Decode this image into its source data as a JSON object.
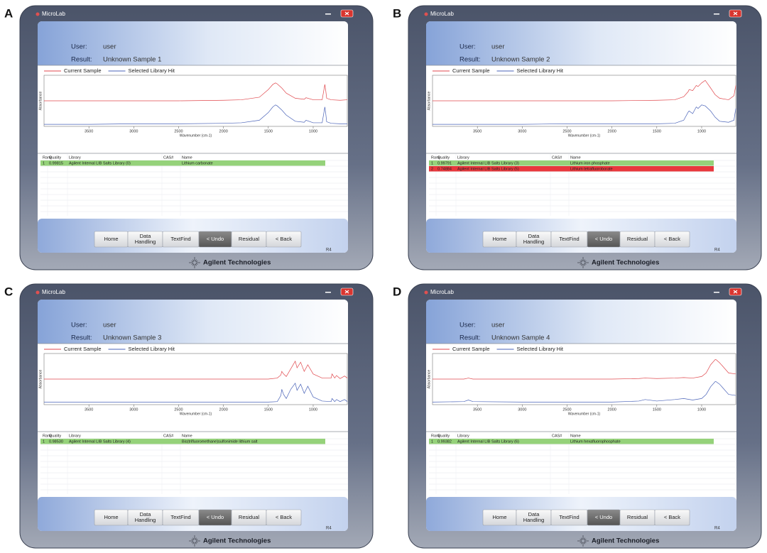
{
  "panels": [
    {
      "label": "A",
      "title": "MicroLab",
      "user_label": "User:",
      "user": "user",
      "result_label": "Result:",
      "result": "Unknown Sample 1",
      "chart_data": {
        "type": "line",
        "y_label": "Absorbance",
        "x_label": "Wavenumber (cm-1)",
        "xlim": [
          4000,
          620
        ],
        "xticks": [
          3500,
          3000,
          2500,
          2000,
          1500,
          1000
        ],
        "ylim": [
          0,
          1
        ],
        "x": [
          4000,
          3500,
          3000,
          2500,
          2000,
          1800,
          1600,
          1500,
          1450,
          1420,
          1400,
          1350,
          1300,
          1200,
          1100,
          1080,
          1000,
          900,
          870,
          860,
          850,
          800,
          700,
          620
        ],
        "series": [
          {
            "name": "Current Sample",
            "color": "#e0474c",
            "values": [
              0.5,
              0.5,
              0.5,
              0.5,
              0.51,
              0.52,
              0.57,
              0.72,
              0.82,
              0.85,
              0.83,
              0.75,
              0.65,
              0.55,
              0.53,
              0.56,
              0.52,
              0.52,
              0.82,
              0.7,
              0.55,
              0.52,
              0.51,
              0.52
            ]
          },
          {
            "name": "Selected Library Hit",
            "color": "#4a63b8",
            "values": [
              0.04,
              0.04,
              0.05,
              0.05,
              0.06,
              0.07,
              0.12,
              0.27,
              0.38,
              0.42,
              0.4,
              0.32,
              0.22,
              0.1,
              0.08,
              0.12,
              0.07,
              0.07,
              0.38,
              0.25,
              0.09,
              0.06,
              0.05,
              0.05
            ]
          }
        ]
      },
      "table": {
        "columns": [
          "Rank",
          "Quality",
          "Library",
          "CAS#",
          "Name"
        ],
        "rows": [
          {
            "rank": 1,
            "quality": "0.99815",
            "library": "Agilent Internal LIB Salts Library (0)",
            "name": "Lithium carbonate",
            "color": "#95d27a"
          }
        ]
      },
      "buttons": [
        "Home",
        [
          "Data",
          "Handling"
        ],
        "TextFind",
        "< Undo",
        "Residual",
        "< Back"
      ],
      "active_button": 3,
      "version": "R4",
      "brand": "Agilent Technologies"
    },
    {
      "label": "B",
      "title": "MicroLab",
      "user_label": "User:",
      "user": "user",
      "result_label": "Result:",
      "result": "Unknown Sample 2",
      "chart_data": {
        "type": "line",
        "y_label": "Absorbance",
        "x_label": "Wavenumber (cm-1)",
        "xlim": [
          4000,
          620
        ],
        "xticks": [
          3500,
          3000,
          2500,
          2000,
          1500,
          1000
        ],
        "ylim": [
          0,
          1
        ],
        "x": [
          4000,
          3500,
          3000,
          2500,
          2000,
          1500,
          1300,
          1200,
          1150,
          1140,
          1100,
          1060,
          1040,
          1000,
          960,
          900,
          850,
          800,
          700,
          640,
          620
        ],
        "series": [
          {
            "name": "Current Sample",
            "color": "#e0474c",
            "values": [
              0.5,
              0.5,
              0.5,
              0.5,
              0.5,
              0.51,
              0.52,
              0.58,
              0.68,
              0.72,
              0.7,
              0.8,
              0.78,
              0.85,
              0.9,
              0.75,
              0.62,
              0.55,
              0.52,
              0.6,
              0.8
            ]
          },
          {
            "name": "Selected Library Hit",
            "color": "#4a63b8",
            "values": [
              0.04,
              0.04,
              0.04,
              0.05,
              0.05,
              0.05,
              0.06,
              0.12,
              0.28,
              0.3,
              0.25,
              0.38,
              0.35,
              0.42,
              0.4,
              0.3,
              0.18,
              0.1,
              0.08,
              0.12,
              0.35
            ]
          }
        ]
      },
      "table": {
        "columns": [
          "Rank",
          "Quality",
          "Library",
          "CAS#",
          "Name"
        ],
        "rows": [
          {
            "rank": 1,
            "quality": "0.99791",
            "library": "Agilent Internal LIB Salts Library (3)",
            "name": "Lithium iron phosphate",
            "color": "#95d27a"
          },
          {
            "rank": 2,
            "quality": "0.74884",
            "library": "Agilent Internal LIB Salts Library (5)",
            "name": "Lithium tetrafluoroborate",
            "color": "#e8383d"
          }
        ]
      },
      "buttons": [
        "Home",
        [
          "Data",
          "Handling"
        ],
        "TextFind",
        "< Undo",
        "Residual",
        "< Back"
      ],
      "active_button": 3,
      "version": "R4",
      "brand": "Agilent Technologies"
    },
    {
      "label": "C",
      "title": "MicroLab",
      "user_label": "User:",
      "user": "user",
      "result_label": "Result:",
      "result": "Unknown Sample 3",
      "chart_data": {
        "type": "line",
        "y_label": "Absorbance",
        "x_label": "Wavenumber (cm-1)",
        "xlim": [
          4000,
          620
        ],
        "xticks": [
          3500,
          3000,
          2500,
          2000,
          1500,
          1000
        ],
        "ylim": [
          0,
          1
        ],
        "x": [
          4000,
          3500,
          3000,
          2500,
          2000,
          1500,
          1400,
          1360,
          1350,
          1330,
          1300,
          1250,
          1200,
          1180,
          1140,
          1100,
          1060,
          1000,
          900,
          800,
          790,
          760,
          740,
          700,
          650,
          620
        ],
        "series": [
          {
            "name": "Current Sample",
            "color": "#e0474c",
            "values": [
              0.5,
              0.5,
              0.5,
              0.5,
              0.5,
              0.5,
              0.52,
              0.58,
              0.65,
              0.6,
              0.55,
              0.7,
              0.85,
              0.72,
              0.83,
              0.65,
              0.78,
              0.6,
              0.52,
              0.52,
              0.6,
              0.52,
              0.57,
              0.51,
              0.56,
              0.52
            ]
          },
          {
            "name": "Selected Library Hit",
            "color": "#4a63b8",
            "values": [
              0.05,
              0.05,
              0.05,
              0.05,
              0.05,
              0.05,
              0.06,
              0.18,
              0.3,
              0.2,
              0.12,
              0.3,
              0.42,
              0.28,
              0.4,
              0.22,
              0.36,
              0.15,
              0.07,
              0.06,
              0.12,
              0.06,
              0.1,
              0.06,
              0.1,
              0.06
            ]
          }
        ]
      },
      "table": {
        "columns": [
          "Rank",
          "Quality",
          "Library",
          "CAS#",
          "Name"
        ],
        "rows": [
          {
            "rank": 1,
            "quality": "0.98530",
            "library": "Agilent Internal LIB Salts Library (4)",
            "name": "Bis(trifluoromethane)sulfonimide lithium salt",
            "color": "#95d27a"
          }
        ]
      },
      "buttons": [
        "Home",
        [
          "Data",
          "Handling"
        ],
        "TextFind",
        "< Undo",
        "Residual",
        "< Back"
      ],
      "active_button": 3,
      "version": "R4",
      "brand": "Agilent Technologies"
    },
    {
      "label": "D",
      "title": "MicroLab",
      "user_label": "User:",
      "user": "user",
      "result_label": "Result:",
      "result": "Unknown Sample 4",
      "chart_data": {
        "type": "line",
        "y_label": "Absorbance",
        "x_label": "Wavenumber (cm-1)",
        "xlim": [
          4000,
          620
        ],
        "xticks": [
          3500,
          3000,
          2500,
          2000,
          1500,
          1000
        ],
        "ylim": [
          0,
          1
        ],
        "x": [
          4000,
          3650,
          3600,
          3550,
          3000,
          2500,
          2000,
          1700,
          1630,
          1500,
          1300,
          1200,
          1100,
          1000,
          950,
          900,
          850,
          840,
          800,
          750,
          700,
          620
        ],
        "series": [
          {
            "name": "Current Sample",
            "color": "#e0474c",
            "values": [
              0.5,
              0.5,
              0.52,
              0.5,
              0.5,
              0.5,
              0.5,
              0.51,
              0.52,
              0.51,
              0.52,
              0.53,
              0.52,
              0.55,
              0.62,
              0.78,
              0.88,
              0.88,
              0.82,
              0.72,
              0.62,
              0.6
            ]
          },
          {
            "name": "Selected Library Hit",
            "color": "#4a63b8",
            "values": [
              0.05,
              0.06,
              0.09,
              0.06,
              0.05,
              0.05,
              0.05,
              0.07,
              0.1,
              0.07,
              0.1,
              0.12,
              0.09,
              0.12,
              0.2,
              0.35,
              0.45,
              0.45,
              0.4,
              0.3,
              0.2,
              0.18
            ]
          }
        ]
      },
      "table": {
        "columns": [
          "Rank",
          "Quality",
          "Library",
          "CAS#",
          "Name"
        ],
        "rows": [
          {
            "rank": 1,
            "quality": "0.99382",
            "library": "Agilent Internal LIB Salts Library (6)",
            "name": "Lithium hexafluorophosphate",
            "color": "#95d27a"
          }
        ]
      },
      "buttons": [
        "Home",
        [
          "Data",
          "Handling"
        ],
        "TextFind",
        "< Undo",
        "Residual",
        "< Back"
      ],
      "active_button": 3,
      "version": "R4",
      "brand": "Agilent Technologies"
    }
  ]
}
